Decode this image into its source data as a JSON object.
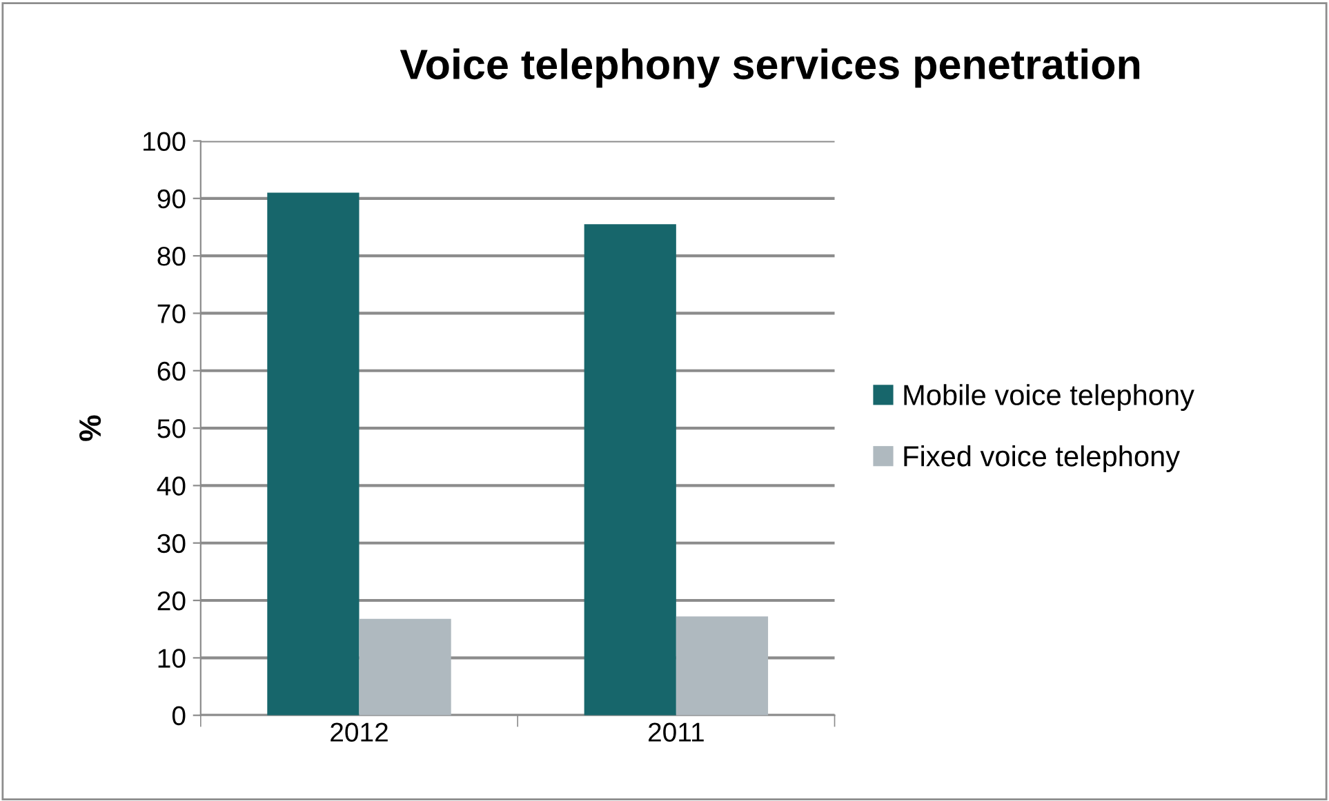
{
  "chart_data": {
    "type": "bar",
    "title": "Voice telephony services penetration",
    "ylabel": "%",
    "categories": [
      "2012",
      "2011"
    ],
    "series": [
      {
        "name": "Mobile voice telephony",
        "color": "#17666b",
        "values": [
          91.0,
          85.5
        ]
      },
      {
        "name": "Fixed voice telephony",
        "color": "#afb9bf",
        "values": [
          16.8,
          17.2
        ]
      }
    ],
    "ylim": [
      0,
      100
    ],
    "yticks": [
      0,
      10,
      20,
      30,
      40,
      50,
      60,
      70,
      80,
      90,
      100
    ],
    "grid": "y",
    "legend": "right"
  }
}
